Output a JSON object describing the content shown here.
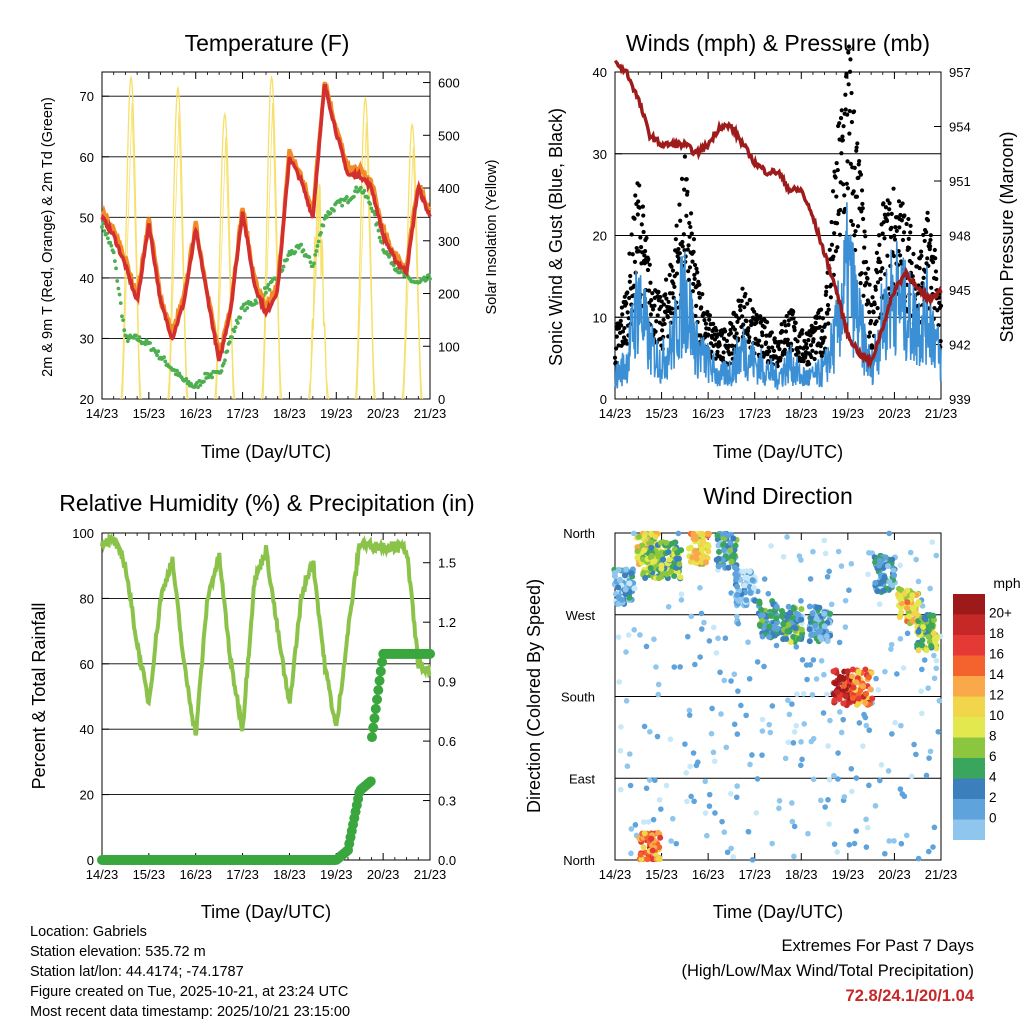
{
  "x_ticks": [
    "14/23",
    "15/23",
    "16/23",
    "17/23",
    "18/23",
    "19/23",
    "20/23",
    "21/23"
  ],
  "x_axis_label": "Time (Day/UTC)",
  "charts": {
    "temperature": {
      "title": "Temperature (F)",
      "ylabel_left": "2m & 9m T (Red, Orange) & 2m Td (Green)",
      "ylabel_right": "Solar Insolation (Yellow)",
      "left_ticks": [
        "20",
        "30",
        "40",
        "50",
        "60",
        "70"
      ],
      "right_ticks": [
        "0",
        "100",
        "200",
        "300",
        "400",
        "500",
        "600"
      ]
    },
    "winds": {
      "title": "Winds (mph) & Pressure (mb)",
      "ylabel_left": "Sonic Wind & Gust (Blue, Black)",
      "ylabel_right": "Station Pressure (Maroon)",
      "left_ticks": [
        "0",
        "10",
        "20",
        "30",
        "40"
      ],
      "right_ticks": [
        "939",
        "942",
        "945",
        "948",
        "951",
        "954",
        "957"
      ]
    },
    "humidity": {
      "title": "Relative Humidity (%) & Precipitation (in)",
      "ylabel_left": "Percent & Total Rainfall",
      "left_ticks": [
        "0",
        "20",
        "40",
        "60",
        "80",
        "100"
      ],
      "right_ticks": [
        "0.0",
        "0.3",
        "0.6",
        "0.9",
        "1.2",
        "1.5"
      ]
    },
    "direction": {
      "title": "Wind Direction",
      "ylabel_left": "Direction (Colored By Speed)",
      "left_ticks": [
        "North",
        "East",
        "South",
        "West",
        "North"
      ],
      "legend_title": "mph",
      "legend_labels": [
        "20+",
        "18",
        "16",
        "14",
        "12",
        "10",
        "8",
        "6",
        "4",
        "2",
        "0"
      ],
      "legend_colors": [
        "#9e1a1a",
        "#c62828",
        "#e53935",
        "#f4632e",
        "#f9a84a",
        "#f1d54a",
        "#e3e84e",
        "#8cc63f",
        "#3aa55c",
        "#3b7fbd",
        "#5ea3dc",
        "#8ec6ee",
        "#c7e8f8"
      ]
    }
  },
  "chart_data": [
    {
      "type": "line",
      "title": "Temperature (F)",
      "x": [
        0,
        0.25,
        0.5,
        0.75,
        1,
        1.25,
        1.5,
        1.75,
        2,
        2.25,
        2.5,
        2.75,
        3,
        3.25,
        3.5,
        3.75,
        4,
        4.25,
        4.5,
        4.75,
        5,
        5.25,
        5.5,
        5.75,
        6,
        6.25,
        6.5,
        6.75,
        7
      ],
      "series": [
        {
          "name": "2m T",
          "color": "#d32f2f",
          "values": [
            50,
            47,
            42,
            36,
            49,
            36,
            30,
            36,
            48,
            37,
            26,
            35,
            51,
            39,
            34,
            38,
            60,
            56,
            50,
            72,
            64,
            57,
            57,
            55,
            47,
            43,
            41,
            55,
            50
          ]
        },
        {
          "name": "2m Td",
          "color": "#4caf50",
          "values": [
            49,
            44,
            30,
            30,
            29,
            27,
            25,
            23,
            22,
            24,
            24,
            30,
            35,
            36,
            38,
            40,
            44,
            45,
            42,
            50,
            52,
            53,
            55,
            52,
            45,
            42,
            40,
            39,
            40
          ]
        },
        {
          "name": "Solar Insolation",
          "color": "#f7e06a",
          "axis": "right",
          "daily_peaks": [
            610,
            590,
            540,
            610,
            430,
            570,
            520
          ]
        }
      ],
      "ylim_left": [
        20,
        74
      ],
      "ylim_right": [
        0,
        620
      ]
    },
    {
      "type": "line",
      "title": "Winds (mph) & Pressure (mb)",
      "x": [
        0,
        0.25,
        0.5,
        0.75,
        1,
        1.25,
        1.5,
        1.75,
        2,
        2.25,
        2.5,
        2.75,
        3,
        3.25,
        3.5,
        3.75,
        4,
        4.25,
        4.5,
        4.75,
        5,
        5.25,
        5.5,
        5.75,
        6,
        6.25,
        6.5,
        6.75,
        7
      ],
      "series": [
        {
          "name": "Sonic Wind",
          "color": "#3b8fd4",
          "values": [
            3,
            5,
            14,
            7,
            5,
            8,
            15,
            7,
            5,
            3,
            4,
            7,
            5,
            4,
            3,
            5,
            3,
            3,
            4,
            9,
            18,
            10,
            4,
            11,
            15,
            12,
            10,
            12,
            5
          ]
        },
        {
          "name": "Gust",
          "color": "#000000",
          "values": [
            7,
            12,
            24,
            14,
            10,
            16,
            25,
            14,
            9,
            7,
            8,
            12,
            9,
            8,
            7,
            10,
            7,
            8,
            10,
            26,
            39,
            25,
            10,
            20,
            22,
            20,
            15,
            20,
            10
          ]
        },
        {
          "name": "Station Pressure",
          "color": "#9e1b1b",
          "axis": "right",
          "values": [
            957.5,
            957,
            955.5,
            953.5,
            953,
            953,
            953,
            952.5,
            953,
            954,
            954,
            953,
            952,
            951.5,
            951.5,
            950.5,
            950.5,
            949,
            947,
            945,
            942.5,
            941.5,
            941,
            943,
            945,
            946,
            945,
            944.5,
            945
          ]
        }
      ],
      "ylim_left": [
        0,
        40
      ],
      "ylim_right": [
        939,
        957
      ]
    },
    {
      "type": "line",
      "title": "Relative Humidity (%) & Precipitation (in)",
      "x": [
        0,
        0.25,
        0.5,
        0.75,
        1,
        1.25,
        1.5,
        1.75,
        2,
        2.25,
        2.5,
        2.75,
        3,
        3.25,
        3.5,
        3.75,
        4,
        4.25,
        4.5,
        4.75,
        5,
        5.25,
        5.5,
        5.75,
        6,
        6.25,
        6.5,
        6.75,
        7
      ],
      "series": [
        {
          "name": "Relative Humidity",
          "color": "#8bc34a",
          "values": [
            97,
            98,
            90,
            66,
            48,
            80,
            92,
            60,
            38,
            80,
            93,
            60,
            40,
            85,
            95,
            70,
            47,
            80,
            92,
            60,
            40,
            70,
            97,
            96,
            96,
            96,
            95,
            60,
            57
          ]
        },
        {
          "name": "Total Rainfall",
          "color": "#3aa63e",
          "axis": "right",
          "values": [
            0,
            0,
            0,
            0,
            0,
            0,
            0,
            0,
            0,
            0,
            0,
            0,
            0,
            0,
            0,
            0,
            0,
            0,
            0,
            0,
            0,
            0.05,
            0.35,
            0.6,
            1.04,
            1.04,
            1.04,
            1.04,
            1.04
          ]
        }
      ],
      "ylim_left": [
        0,
        100
      ],
      "ylim_right": [
        0,
        1.65
      ]
    },
    {
      "type": "scatter",
      "title": "Wind Direction",
      "x_range": [
        0,
        7
      ],
      "y_categories": [
        "North",
        "East",
        "South",
        "West",
        "North"
      ],
      "clusters": [
        {
          "day": 0.2,
          "dir": 300,
          "speed": 3
        },
        {
          "day": 0.7,
          "dir": 345,
          "speed": 10
        },
        {
          "day": 0.8,
          "dir": 330,
          "speed": 8
        },
        {
          "day": 1.2,
          "dir": 330,
          "speed": 7
        },
        {
          "day": 1.8,
          "dir": 345,
          "speed": 11
        },
        {
          "day": 2.4,
          "dir": 340,
          "speed": 5
        },
        {
          "day": 2.8,
          "dir": 300,
          "speed": 2
        },
        {
          "day": 3.3,
          "dir": 265,
          "speed": 5
        },
        {
          "day": 3.8,
          "dir": 260,
          "speed": 6
        },
        {
          "day": 4.4,
          "dir": 260,
          "speed": 4
        },
        {
          "day": 4.9,
          "dir": 190,
          "speed": 18
        },
        {
          "day": 5.3,
          "dir": 190,
          "speed": 14
        },
        {
          "day": 5.8,
          "dir": 315,
          "speed": 4
        },
        {
          "day": 6.3,
          "dir": 280,
          "speed": 11
        },
        {
          "day": 6.7,
          "dir": 250,
          "speed": 8
        },
        {
          "day": 0.75,
          "dir": 10,
          "speed": 14
        }
      ]
    }
  ],
  "info": {
    "location": "Location: Gabriels",
    "elevation": "Station elevation: 535.72 m",
    "latlon": "Station lat/lon: 44.4174; -74.1787",
    "created": "Figure created on Tue, 2025-10-21, at 23:24 UTC",
    "recent": "Most recent data timestamp: 2025/10/21 23:15:00"
  },
  "extremes": {
    "line1": "Extremes For Past 7 Days",
    "line2": "(High/Low/Max Wind/Total Precipitation)",
    "values": "72.8/24.1/20/1.04"
  }
}
